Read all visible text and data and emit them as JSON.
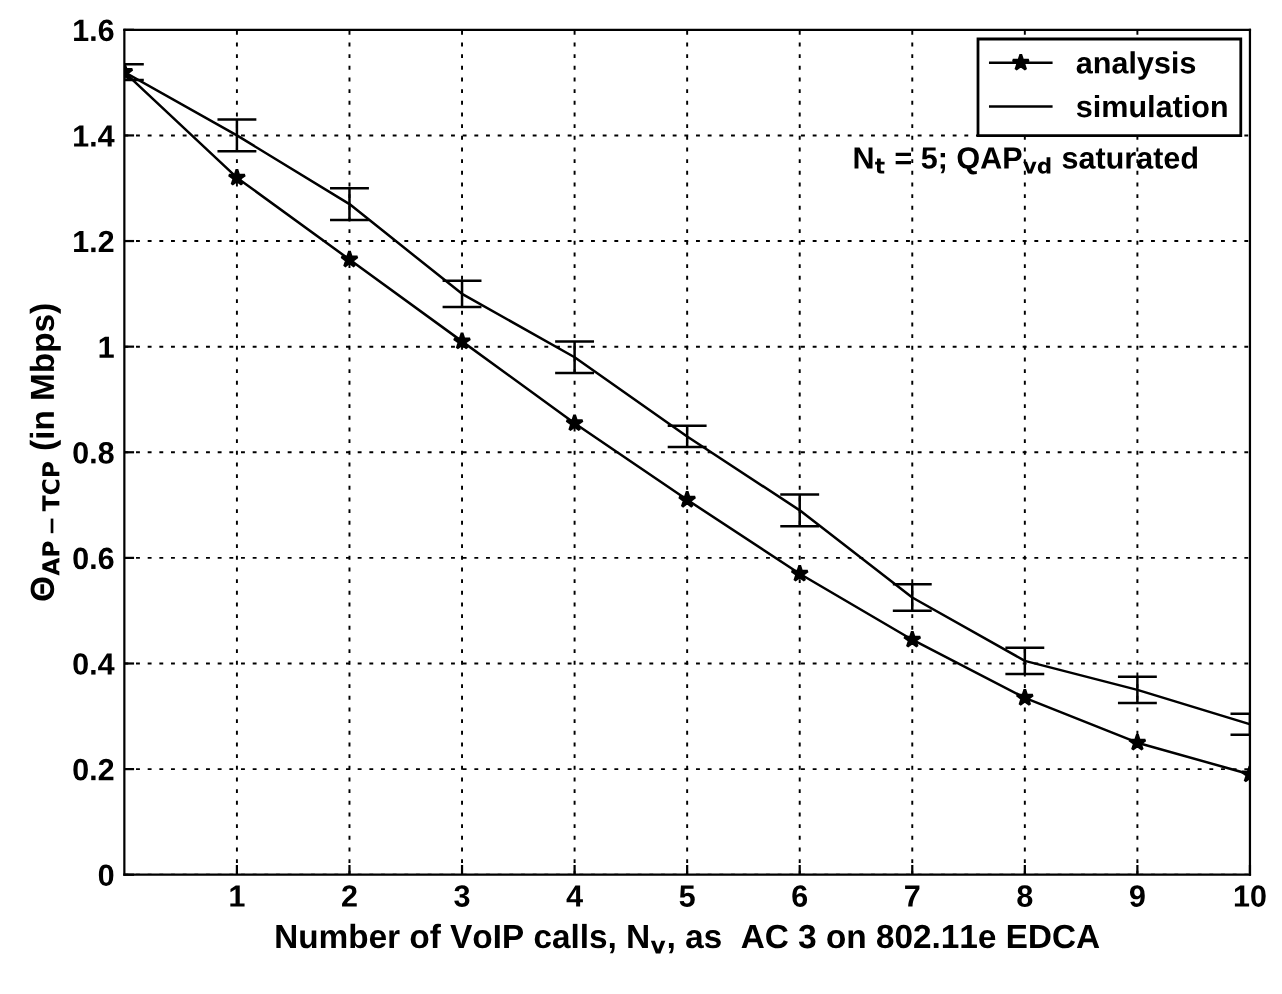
{
  "chart_data": {
    "type": "line",
    "xlabel": "Number of VoIP calls, N$_{v}$, as  AC 3 on 802.11e EDCA",
    "ylabel": "Θ$_{AP−TCP}$ (in Mbps)",
    "annotations": [
      "N$_{t}$ = 5; QAP$_{vd}$ saturated"
    ],
    "x": [
      0,
      1,
      2,
      3,
      4,
      5,
      6,
      7,
      8,
      9,
      10
    ],
    "series": [
      {
        "name": "analysis",
        "color": "#000000",
        "marker": "star",
        "values": [
          1.52,
          1.32,
          1.165,
          1.01,
          0.855,
          0.71,
          0.57,
          0.445,
          0.335,
          0.25,
          0.19
        ]
      },
      {
        "name": "simulation",
        "color": "#000000",
        "marker": "none",
        "values": [
          1.52,
          1.4,
          1.27,
          1.1,
          0.98,
          0.83,
          0.69,
          0.525,
          0.405,
          0.35,
          0.285
        ],
        "errors": [
          0.015,
          0.03,
          0.03,
          0.025,
          0.03,
          0.02,
          0.03,
          0.025,
          0.025,
          0.025,
          0.02
        ]
      }
    ],
    "xlim": [
      0,
      10
    ],
    "xticks": [
      1,
      2,
      3,
      4,
      5,
      6,
      7,
      8,
      9,
      10
    ],
    "ylim": [
      0,
      1.6
    ],
    "yticks": [
      0,
      0.2,
      0.4,
      0.6,
      0.8,
      1,
      1.2,
      1.4,
      1.6
    ],
    "grid": true,
    "legend": "top right",
    "line_style": "solid"
  }
}
